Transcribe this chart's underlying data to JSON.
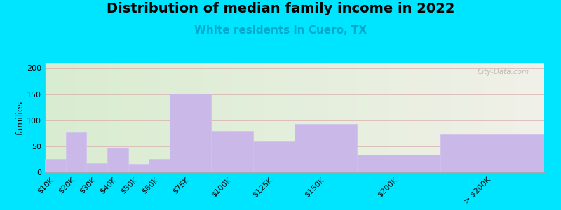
{
  "title": "Distribution of median family income in 2022",
  "subtitle": "White residents in Cuero, TX",
  "ylabel": "families",
  "categories": [
    "$10K",
    "$20K",
    "$30K",
    "$40K",
    "$50K",
    "$60K",
    "$75K",
    "$100K",
    "$125K",
    "$150K",
    "$200K",
    "> $200K"
  ],
  "values": [
    25,
    77,
    18,
    47,
    16,
    25,
    151,
    79,
    59,
    93,
    34,
    73
  ],
  "bar_lefts": [
    0,
    1,
    2,
    3,
    4,
    5,
    6,
    8,
    10,
    12,
    15,
    19
  ],
  "bar_widths": [
    1,
    1,
    1,
    1,
    1,
    1,
    2,
    2,
    2,
    3,
    4,
    5
  ],
  "bar_color": "#c9b8e8",
  "bar_edgecolor": "#d0c0f0",
  "ylim": [
    0,
    210
  ],
  "yticks": [
    0,
    50,
    100,
    150,
    200
  ],
  "bg_outer": "#00e5ff",
  "bg_plot_topleft": "#d8ecd0",
  "bg_plot_bottomright": "#f0f0e8",
  "title_fontsize": 14,
  "subtitle_fontsize": 11,
  "subtitle_color": "#00aacc",
  "ylabel_fontsize": 9,
  "tick_fontsize": 8,
  "watermark": "City-Data.com",
  "grid_color": "#d4a0a0",
  "grid_alpha": 0.6,
  "tick_label_positions": [
    0.5,
    1.5,
    2.5,
    3.5,
    4.5,
    5.5,
    7,
    9,
    11,
    13.5,
    17,
    21.5
  ],
  "xlim": [
    0,
    24
  ]
}
